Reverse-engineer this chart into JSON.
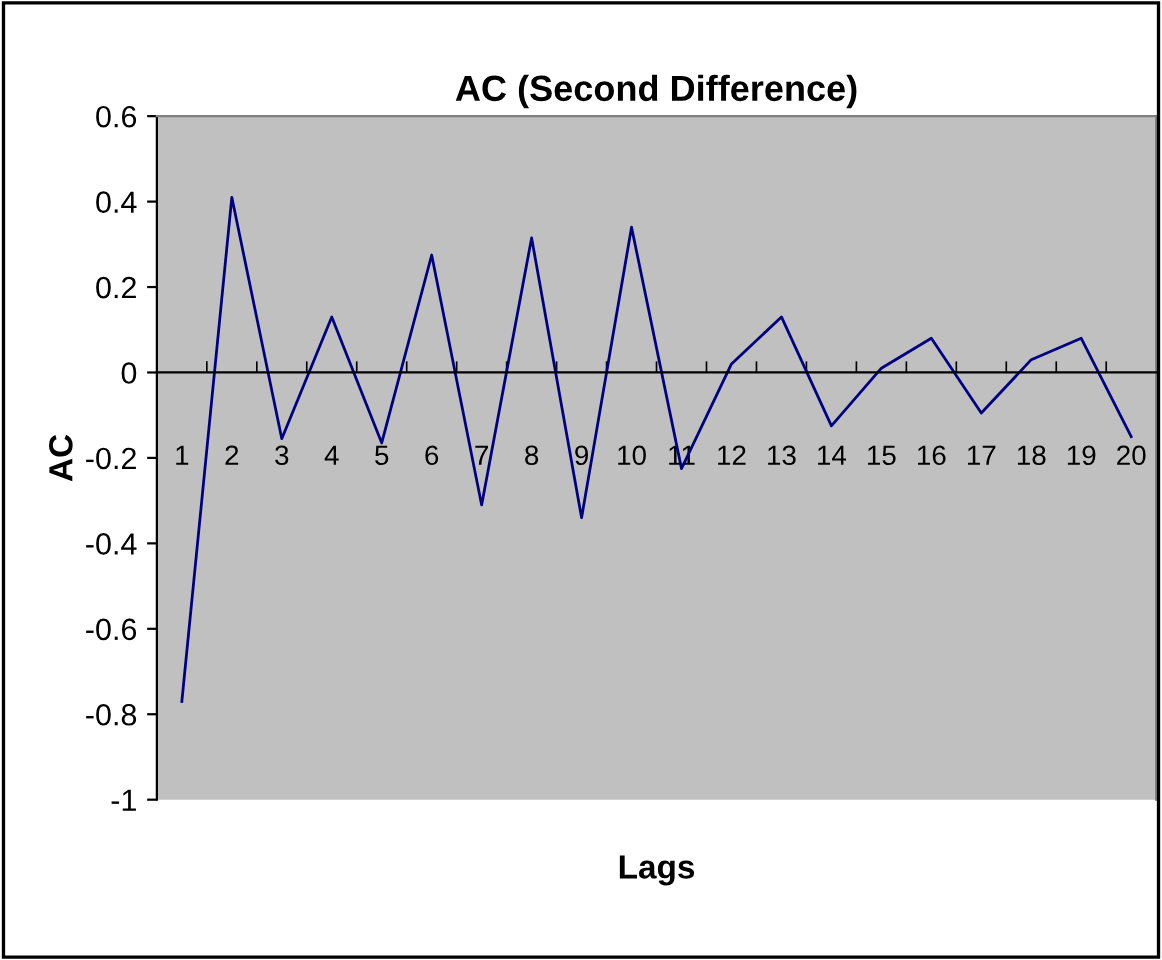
{
  "chart_data": {
    "type": "line",
    "title": "AC (Second Difference)",
    "xlabel": "Lags",
    "ylabel": "AC",
    "categories": [
      "1",
      "2",
      "3",
      "4",
      "5",
      "6",
      "7",
      "8",
      "9",
      "10",
      "11",
      "12",
      "13",
      "14",
      "15",
      "16",
      "17",
      "18",
      "19",
      "20"
    ],
    "series": [
      {
        "color": "#000080",
        "values": [
          -0.77,
          0.41,
          -0.155,
          0.13,
          -0.165,
          0.275,
          -0.31,
          0.315,
          -0.34,
          0.34,
          -0.225,
          0.02,
          0.13,
          -0.125,
          0.01,
          0.08,
          -0.095,
          0.03,
          0.08,
          -0.15
        ]
      }
    ],
    "ylim": [
      -1,
      0.6
    ],
    "yticks": [
      {
        "value": -1,
        "label": "-1"
      },
      {
        "value": -0.8,
        "label": "-0.8"
      },
      {
        "value": -0.6,
        "label": "-0.6"
      },
      {
        "value": -0.4,
        "label": "-0.4"
      },
      {
        "value": -0.2,
        "label": "-0.2"
      },
      {
        "value": 0,
        "label": "0"
      },
      {
        "value": 0.2,
        "label": "0.2"
      },
      {
        "value": 0.4,
        "label": "0.4"
      },
      {
        "value": 0.6,
        "label": "0.6"
      }
    ],
    "legend": false,
    "marker": "none",
    "line_style": "solid"
  }
}
